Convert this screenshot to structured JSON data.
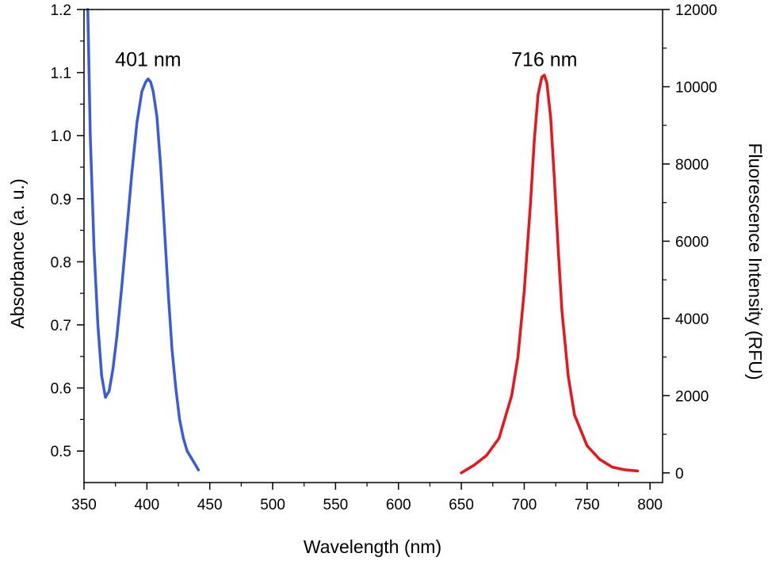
{
  "chart_data": {
    "type": "line",
    "title": "",
    "xlabel": "Wavelength (nm)",
    "ylabel_left": "Absorbance (a. u.)",
    "ylabel_right": "Fluorescence Intensity (RFU)",
    "xlim": [
      350,
      810
    ],
    "ylim_left": [
      0.45,
      1.2
    ],
    "ylim_right": [
      -250,
      12000
    ],
    "x_ticks": [
      350,
      400,
      450,
      500,
      550,
      600,
      650,
      700,
      750,
      800
    ],
    "y_left_ticks": [
      0.5,
      0.6,
      0.7,
      0.8,
      0.9,
      1.0,
      1.1,
      1.2
    ],
    "y_left_tick_labels": [
      "0.5",
      "0.6",
      "0.7",
      "0.8",
      "0.9",
      "1.0",
      "1.1",
      "1.2"
    ],
    "y_right_ticks": [
      0,
      2000,
      4000,
      6000,
      8000,
      10000,
      12000
    ],
    "grid": false,
    "series": [
      {
        "axis": "left",
        "color": "#3b5bdb",
        "x": [
          353,
          355,
          358,
          361,
          364,
          367,
          370,
          373,
          376,
          380,
          384,
          388,
          392,
          396,
          399,
          401,
          403,
          405,
          408,
          411,
          414,
          417,
          420,
          423,
          426,
          429,
          432,
          435,
          438,
          441
        ],
        "y": [
          1.2,
          1.0,
          0.82,
          0.7,
          0.62,
          0.585,
          0.595,
          0.63,
          0.68,
          0.76,
          0.85,
          0.94,
          1.02,
          1.07,
          1.085,
          1.09,
          1.085,
          1.07,
          1.03,
          0.95,
          0.85,
          0.75,
          0.66,
          0.6,
          0.55,
          0.52,
          0.5,
          0.49,
          0.48,
          0.47
        ]
      },
      {
        "axis": "right",
        "color": "#e8151b",
        "x": [
          650,
          660,
          670,
          680,
          690,
          695,
          700,
          705,
          708,
          711,
          714,
          716,
          718,
          721,
          724,
          727,
          730,
          735,
          740,
          750,
          760,
          770,
          780,
          790
        ],
        "y": [
          0,
          200,
          450,
          900,
          2000,
          3000,
          4700,
          7000,
          8600,
          9800,
          10250,
          10300,
          10100,
          9200,
          7600,
          5800,
          4200,
          2500,
          1500,
          700,
          350,
          150,
          80,
          50
        ]
      }
    ],
    "annotations": [
      {
        "text": "401 nm",
        "x": 401,
        "y": 1.12,
        "axis": "left"
      },
      {
        "text": "716 nm",
        "x": 716,
        "y": 1.12,
        "axis": "left"
      }
    ]
  }
}
